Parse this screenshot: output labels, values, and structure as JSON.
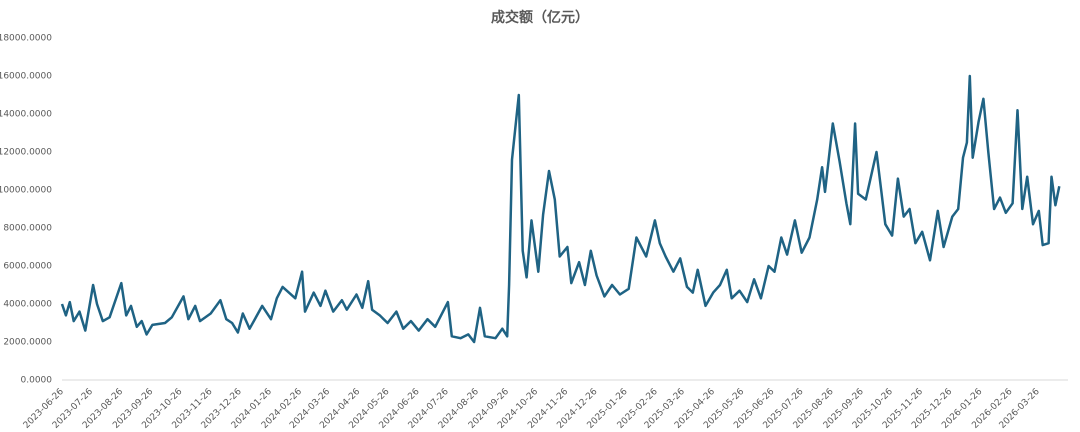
{
  "chart_data": {
    "type": "line",
    "title": "成交额（亿元）",
    "x": [
      "2023-06-26",
      "2023-06-30",
      "2023-07-04",
      "2023-07-08",
      "2023-07-14",
      "2023-07-20",
      "2023-07-28",
      "2023-08-01",
      "2023-08-07",
      "2023-08-14",
      "2023-08-26",
      "2023-08-31",
      "2023-09-05",
      "2023-09-11",
      "2023-09-16",
      "2023-09-21",
      "2023-09-27",
      "2023-10-10",
      "2023-10-17",
      "2023-10-29",
      "2023-11-03",
      "2023-11-10",
      "2023-11-15",
      "2023-11-26",
      "2023-12-06",
      "2023-12-12",
      "2023-12-18",
      "2023-12-24",
      "2023-12-29",
      "2024-01-05",
      "2024-01-18",
      "2024-01-27",
      "2024-02-02",
      "2024-02-08",
      "2024-02-21",
      "2024-02-28",
      "2024-03-02",
      "2024-03-11",
      "2024-03-18",
      "2024-03-23",
      "2024-03-31",
      "2024-04-09",
      "2024-04-14",
      "2024-04-24",
      "2024-04-30",
      "2024-05-06",
      "2024-05-10",
      "2024-05-18",
      "2024-05-26",
      "2024-06-04",
      "2024-06-11",
      "2024-06-19",
      "2024-06-27",
      "2024-07-06",
      "2024-07-14",
      "2024-07-27",
      "2024-07-31",
      "2024-08-09",
      "2024-08-17",
      "2024-08-23",
      "2024-08-29",
      "2024-09-03",
      "2024-09-14",
      "2024-09-21",
      "2024-09-26",
      "2024-09-28",
      "2024-10-01",
      "2024-10-08",
      "2024-10-12",
      "2024-10-16",
      "2024-10-21",
      "2024-10-28",
      "2024-11-02",
      "2024-11-08",
      "2024-11-14",
      "2024-11-19",
      "2024-11-27",
      "2024-12-01",
      "2024-12-09",
      "2024-12-15",
      "2024-12-21",
      "2024-12-27",
      "2025-01-04",
      "2025-01-12",
      "2025-01-20",
      "2025-01-29",
      "2025-02-06",
      "2025-02-16",
      "2025-02-25",
      "2025-03-02",
      "2025-03-08",
      "2025-03-16",
      "2025-03-23",
      "2025-03-30",
      "2025-04-05",
      "2025-04-10",
      "2025-04-18",
      "2025-04-26",
      "2025-05-03",
      "2025-05-10",
      "2025-05-15",
      "2025-05-23",
      "2025-05-31",
      "2025-06-07",
      "2025-06-14",
      "2025-06-22",
      "2025-06-28",
      "2025-07-05",
      "2025-07-11",
      "2025-07-19",
      "2025-07-26",
      "2025-08-03",
      "2025-08-11",
      "2025-08-16",
      "2025-08-19",
      "2025-08-27",
      "2025-09-03",
      "2025-09-10",
      "2025-09-14",
      "2025-09-19",
      "2025-09-22",
      "2025-09-30",
      "2025-10-11",
      "2025-10-16",
      "2025-10-20",
      "2025-10-27",
      "2025-11-02",
      "2025-11-08",
      "2025-11-14",
      "2025-11-20",
      "2025-11-27",
      "2025-12-05",
      "2025-12-13",
      "2025-12-19",
      "2025-12-28",
      "2026-01-03",
      "2026-01-08",
      "2026-01-12",
      "2026-01-15",
      "2026-01-18",
      "2026-01-24",
      "2026-01-29",
      "2026-02-03",
      "2026-02-09",
      "2026-02-15",
      "2026-02-21",
      "2026-02-28",
      "2026-03-05",
      "2026-03-10",
      "2026-03-15",
      "2026-03-21",
      "2026-03-27",
      "2026-03-31",
      "2026-04-06",
      "2026-04-09",
      "2026-04-13",
      "2026-04-17"
    ],
    "series": [
      {
        "color": "#1f6384",
        "values": [
          4000,
          3400,
          4100,
          3100,
          3600,
          2600,
          5000,
          4000,
          3100,
          3300,
          5100,
          3400,
          3900,
          2800,
          3100,
          2400,
          2900,
          3000,
          3300,
          4400,
          3200,
          3900,
          3100,
          3500,
          4200,
          3200,
          3000,
          2500,
          3500,
          2700,
          3900,
          3200,
          4300,
          4900,
          4300,
          5700,
          3600,
          4600,
          3900,
          4700,
          3600,
          4200,
          3700,
          4500,
          3800,
          5200,
          3700,
          3400,
          3000,
          3600,
          2700,
          3100,
          2600,
          3200,
          2800,
          4100,
          2300,
          2200,
          2400,
          2000,
          3800,
          2300,
          2200,
          2700,
          2300,
          5000,
          11600,
          15000,
          6800,
          5400,
          8400,
          5700,
          8700,
          11000,
          9500,
          6500,
          7000,
          5100,
          6200,
          5000,
          6800,
          5500,
          4400,
          5000,
          4500,
          4800,
          7500,
          6500,
          8400,
          7200,
          6500,
          5700,
          6400,
          4900,
          4600,
          5800,
          3900,
          4600,
          5000,
          5800,
          4300,
          4700,
          4100,
          5300,
          4300,
          6000,
          5700,
          7500,
          6600,
          8400,
          6700,
          7500,
          9500,
          11200,
          9900,
          13500,
          11500,
          9300,
          8200,
          13500,
          9800,
          9500,
          12000,
          9900,
          8200,
          7600,
          10600,
          8600,
          9000,
          7200,
          7800,
          6300,
          8900,
          7000,
          8600,
          9000,
          11700,
          12500,
          16000,
          11700,
          13600,
          14800,
          12000,
          9000,
          9600,
          8800,
          9300,
          14200,
          9000,
          10700,
          8200,
          8900,
          7100,
          7200,
          10700,
          9200,
          10200
        ]
      }
    ],
    "xlim": [
      "2023-06-26",
      "2026-04-26"
    ],
    "xticks": [
      "2023-06-26",
      "2023-07-26",
      "2023-08-26",
      "2023-09-26",
      "2023-10-26",
      "2023-11-26",
      "2023-12-26",
      "2024-01-26",
      "2024-02-26",
      "2024-03-26",
      "2024-04-26",
      "2024-05-26",
      "2024-06-26",
      "2024-07-26",
      "2024-08-26",
      "2024-09-26",
      "2024-10-26",
      "2024-11-26",
      "2024-12-26",
      "2025-01-26",
      "2025-02-26",
      "2025-03-26",
      "2025-04-26",
      "2025-05-26",
      "2025-06-26",
      "2025-07-26",
      "2025-08-26",
      "2025-09-26",
      "2025-10-26",
      "2025-11-26",
      "2025-12-26",
      "2026-01-26",
      "2026-02-26",
      "2026-03-26"
    ],
    "ylim": [
      0,
      18000
    ],
    "yticks": [
      {
        "value": 0,
        "label": "0.0000"
      },
      {
        "value": 2000,
        "label": "2000.0000"
      },
      {
        "value": 4000,
        "label": "4000.0000"
      },
      {
        "value": 6000,
        "label": "6000.0000"
      },
      {
        "value": 8000,
        "label": "8000.0000"
      },
      {
        "value": 10000,
        "label": "10000.0000"
      },
      {
        "value": 12000,
        "label": "12000.0000"
      },
      {
        "value": 14000,
        "label": "14000.0000"
      },
      {
        "value": 16000,
        "label": "16000.0000"
      },
      {
        "value": 18000,
        "label": "18000.0000"
      }
    ],
    "grid": false
  }
}
